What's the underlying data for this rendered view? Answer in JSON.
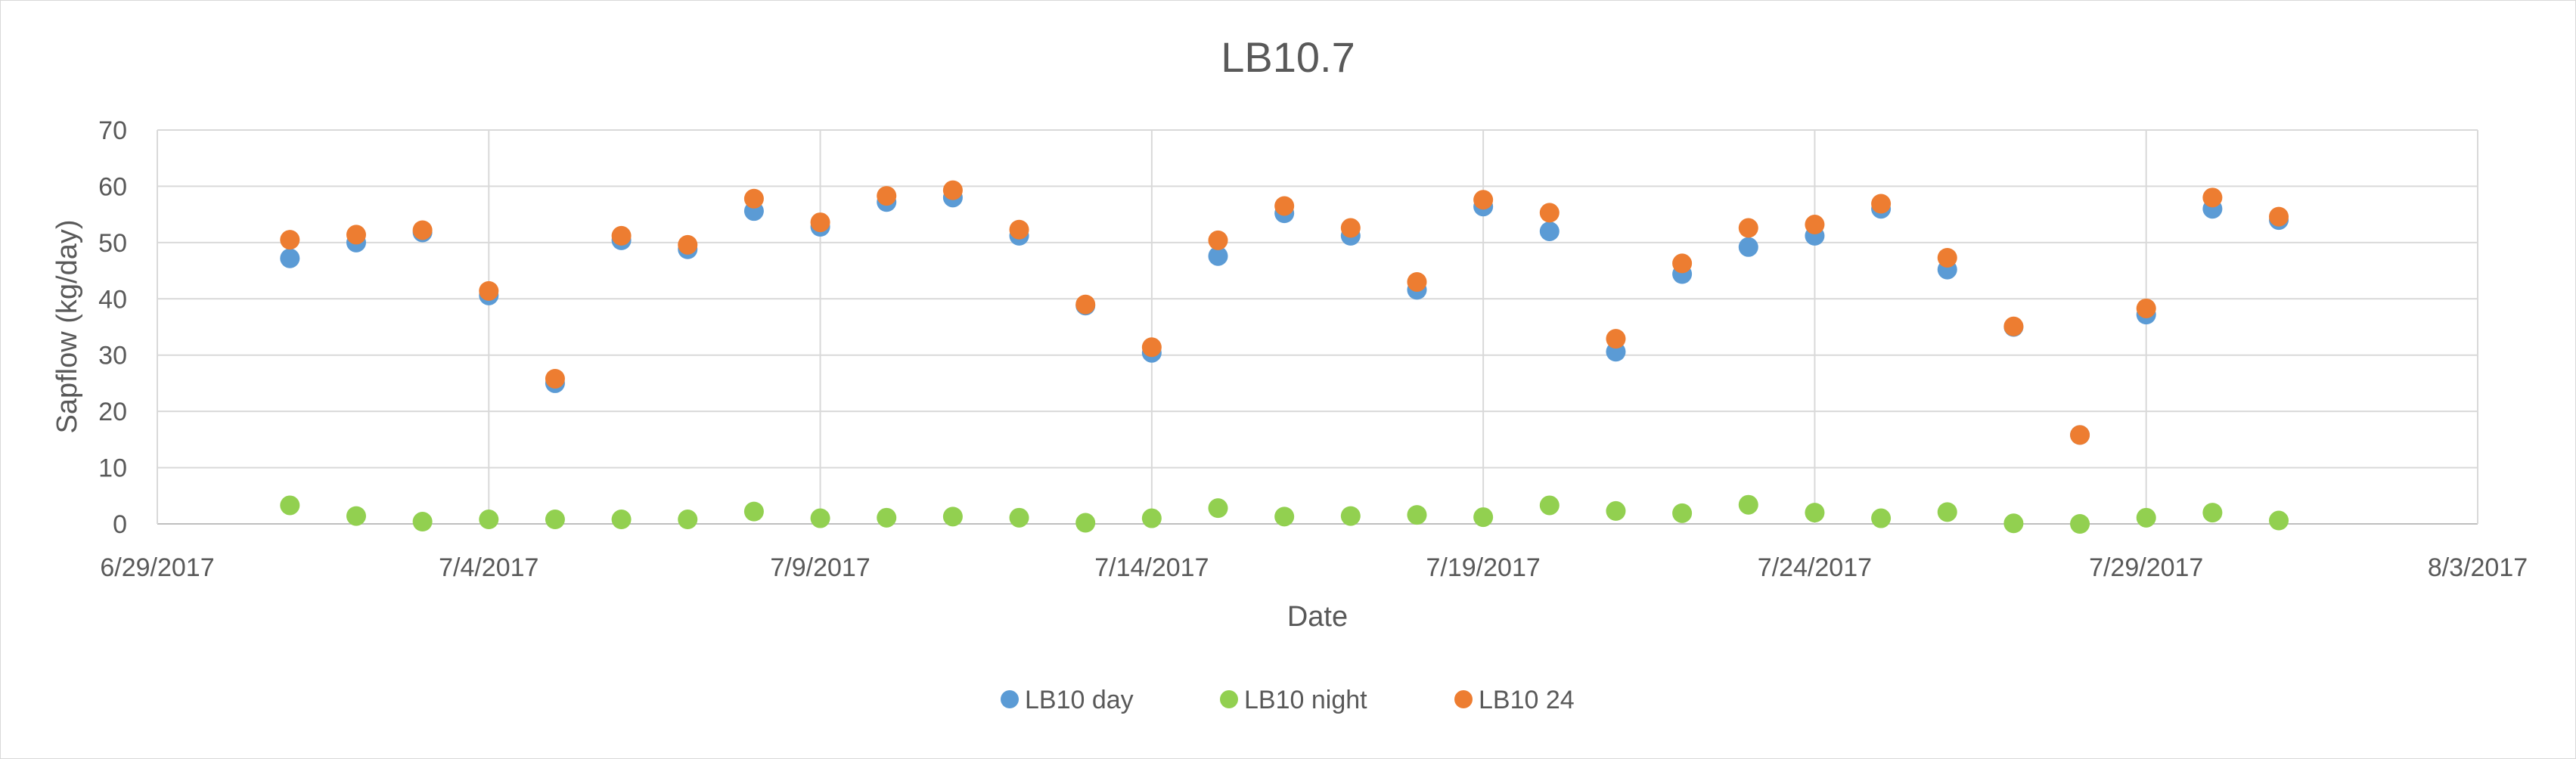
{
  "chart_data": {
    "type": "scatter",
    "title": "LB10.7",
    "xlabel": "Date",
    "ylabel": "Sapflow (kg/day)",
    "xlim": [
      "2017-06-29",
      "2017-08-03"
    ],
    "ylim": [
      0,
      70
    ],
    "x_tick_labels": [
      "6/29/2017",
      "7/4/2017",
      "7/9/2017",
      "7/14/2017",
      "7/19/2017",
      "7/24/2017",
      "7/29/2017",
      "8/3/2017"
    ],
    "y_tick_labels": [
      "0",
      "10",
      "20",
      "30",
      "40",
      "50",
      "60",
      "70"
    ],
    "y_tick_values": [
      0,
      10,
      20,
      30,
      40,
      50,
      60,
      70
    ],
    "x_tick_values": [
      "2017-06-29",
      "2017-07-04",
      "2017-07-09",
      "2017-07-14",
      "2017-07-19",
      "2017-07-24",
      "2017-07-29",
      "2017-08-03"
    ],
    "grid": true,
    "legend_position": "bottom",
    "x": [
      "2017-07-01",
      "2017-07-02",
      "2017-07-03",
      "2017-07-04",
      "2017-07-05",
      "2017-07-06",
      "2017-07-07",
      "2017-07-08",
      "2017-07-09",
      "2017-07-10",
      "2017-07-11",
      "2017-07-12",
      "2017-07-13",
      "2017-07-14",
      "2017-07-15",
      "2017-07-16",
      "2017-07-17",
      "2017-07-18",
      "2017-07-19",
      "2017-07-20",
      "2017-07-21",
      "2017-07-22",
      "2017-07-23",
      "2017-07-24",
      "2017-07-25",
      "2017-07-26",
      "2017-07-27",
      "2017-07-28",
      "2017-07-29",
      "2017-07-30",
      "2017-07-31"
    ],
    "series": [
      {
        "name": "LB10 day",
        "color": "#5b9bd5",
        "values": [
          47.2,
          50.0,
          51.8,
          40.6,
          25.0,
          50.4,
          48.8,
          55.6,
          52.8,
          57.2,
          58.0,
          51.2,
          38.8,
          30.4,
          47.6,
          55.2,
          51.2,
          41.6,
          56.4,
          52.0,
          30.6,
          44.4,
          49.2,
          51.2,
          56.0,
          45.2,
          35.0,
          15.8,
          37.2,
          56.0,
          54.0
        ]
      },
      {
        "name": "LB10 night",
        "color": "#92d050",
        "values": [
          3.3,
          1.4,
          0.4,
          0.8,
          0.8,
          0.8,
          0.8,
          2.2,
          1.0,
          1.1,
          1.3,
          1.1,
          0.2,
          1.0,
          2.8,
          1.3,
          1.4,
          1.6,
          1.2,
          3.3,
          2.3,
          1.9,
          3.4,
          2.0,
          1.0,
          2.1,
          0.1,
          0.0,
          1.1,
          2.0,
          0.6
        ]
      },
      {
        "name": "LB10 24",
        "color": "#ed7d31",
        "values": [
          50.5,
          51.4,
          52.2,
          41.4,
          25.8,
          51.2,
          49.6,
          57.8,
          53.6,
          58.3,
          59.3,
          52.3,
          39.0,
          31.4,
          50.4,
          56.5,
          52.6,
          43.0,
          57.6,
          55.3,
          32.9,
          46.3,
          52.6,
          53.2,
          56.9,
          47.3,
          35.1,
          15.8,
          38.3,
          58.0,
          54.6
        ]
      }
    ]
  }
}
